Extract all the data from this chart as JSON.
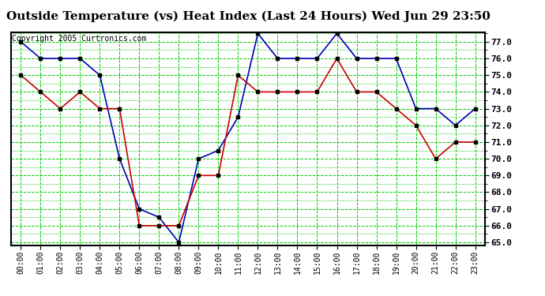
{
  "title": "Outside Temperature (vs) Heat Index (Last 24 Hours) Wed Jun 29 23:50",
  "copyright": "Copyright 2005 Curtronics.com",
  "x_labels": [
    "00:00",
    "01:00",
    "02:00",
    "03:00",
    "04:00",
    "05:00",
    "06:00",
    "07:00",
    "08:00",
    "09:00",
    "10:00",
    "11:00",
    "12:00",
    "13:00",
    "14:00",
    "15:00",
    "16:00",
    "17:00",
    "18:00",
    "19:00",
    "20:00",
    "21:00",
    "22:00",
    "23:00"
  ],
  "blue_data": [
    77.0,
    76.0,
    76.0,
    76.0,
    75.0,
    70.0,
    67.0,
    66.5,
    65.0,
    70.0,
    70.5,
    72.5,
    77.5,
    76.0,
    76.0,
    76.0,
    77.5,
    76.0,
    76.0,
    76.0,
    73.0,
    73.0,
    72.0,
    73.0
  ],
  "red_data": [
    75.0,
    74.0,
    73.0,
    74.0,
    73.0,
    73.0,
    66.0,
    66.0,
    66.0,
    69.0,
    69.0,
    75.0,
    74.0,
    74.0,
    74.0,
    74.0,
    76.0,
    74.0,
    74.0,
    73.0,
    72.0,
    70.0,
    71.0,
    71.0
  ],
  "yticks": [
    65.0,
    66.0,
    67.0,
    68.0,
    69.0,
    70.0,
    71.0,
    72.0,
    73.0,
    74.0,
    75.0,
    76.0,
    77.0
  ],
  "blue_color": "#0000bb",
  "red_color": "#cc0000",
  "grid_color": "#00cc00",
  "bg_color": "#ffffff",
  "title_fontsize": 11,
  "copyright_fontsize": 7
}
